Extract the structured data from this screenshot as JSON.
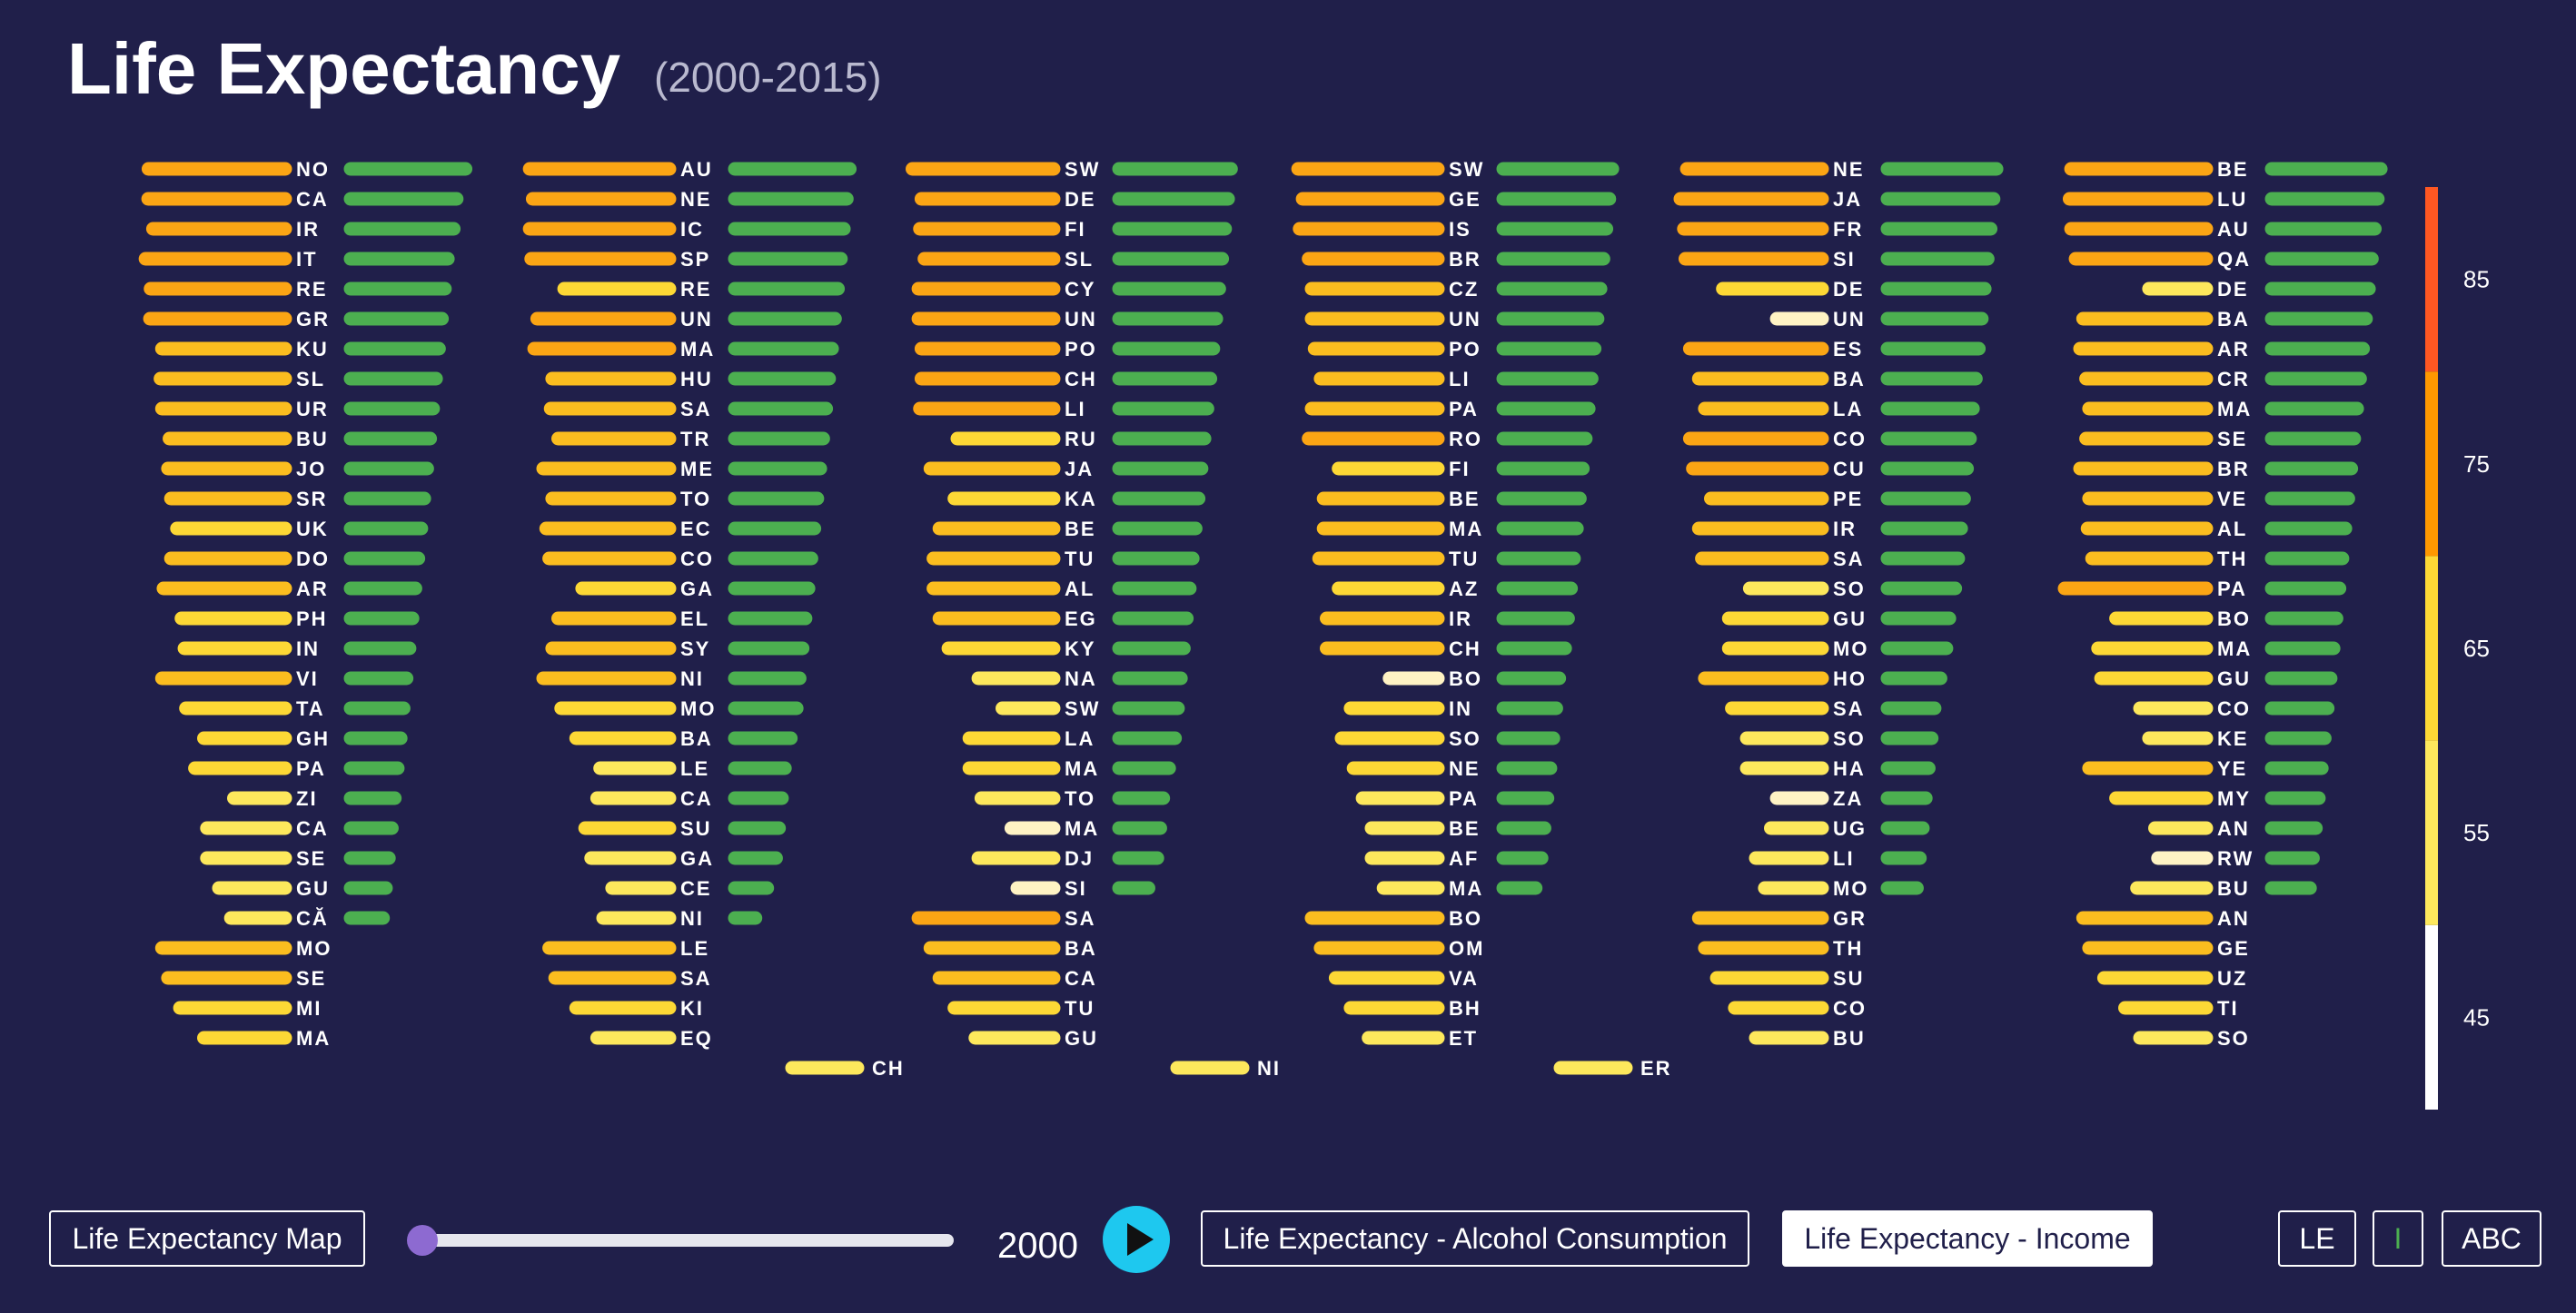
{
  "header": {
    "title": "Life Expectancy",
    "subtitle": "(2000-2015)"
  },
  "controls": {
    "map_button": "Life Expectancy Map",
    "year": "2000",
    "alcohol_button": "Life Expectancy - Alcohol Consumption",
    "income_button": "Life Expectancy - Income",
    "sort_le": "LE",
    "sort_income": "I",
    "sort_abc": "ABC",
    "slider_position": 0
  },
  "colors": {
    "background": "#201f4a",
    "income_bar": "#4caf50",
    "scale": [
      "#ffffff",
      "#fff176",
      "#fdd835",
      "#ff9800",
      "#ff5722"
    ]
  },
  "chart_data": {
    "type": "bar",
    "year": 2000,
    "legend": {
      "ticks": [
        85,
        75,
        65,
        55,
        45
      ],
      "range": [
        40,
        90
      ],
      "bins": [
        40,
        50,
        60,
        70,
        80,
        90
      ]
    },
    "columns": [
      {
        "countries": [
          {
            "code": "NO",
            "le": 78.5,
            "income": 0.94
          },
          {
            "code": "CA",
            "le": 78.6,
            "income": 0.91
          },
          {
            "code": "IR",
            "le": 77.0,
            "income": 0.9
          },
          {
            "code": "IT",
            "le": 79.5,
            "income": 0.88
          },
          {
            "code": "RE",
            "le": 77.8,
            "income": 0.87
          },
          {
            "code": "GR",
            "le": 78.0,
            "income": 0.86
          },
          {
            "code": "KU",
            "le": 74.0,
            "income": 0.85
          },
          {
            "code": "SL",
            "le": 74.5,
            "income": 0.84
          },
          {
            "code": "UR",
            "le": 74.0,
            "income": 0.83
          },
          {
            "code": "BU",
            "le": 71.5,
            "income": 0.82
          },
          {
            "code": "JO",
            "le": 72.0,
            "income": 0.81
          },
          {
            "code": "SR",
            "le": 71.0,
            "income": 0.8
          },
          {
            "code": "UK",
            "le": 69.0,
            "income": 0.79
          },
          {
            "code": "DO",
            "le": 71.0,
            "income": 0.78
          },
          {
            "code": "AR",
            "le": 73.5,
            "income": 0.77
          },
          {
            "code": "PH",
            "le": 67.5,
            "income": 0.76
          },
          {
            "code": "IN",
            "le": 66.5,
            "income": 0.75
          },
          {
            "code": "VI",
            "le": 74.0,
            "income": 0.74
          },
          {
            "code": "TA",
            "le": 66.0,
            "income": 0.73
          },
          {
            "code": "GH",
            "le": 60.0,
            "income": 0.72
          },
          {
            "code": "PA",
            "le": 63.0,
            "income": 0.71
          },
          {
            "code": "ZI",
            "le": 50.0,
            "income": 0.7
          },
          {
            "code": "CA",
            "le": 59.0,
            "income": 0.69
          },
          {
            "code": "SE",
            "le": 59.0,
            "income": 0.68
          },
          {
            "code": "GU",
            "le": 55.0,
            "income": 0.67
          },
          {
            "code": "CĂ",
            "le": 51.0,
            "income": 0.66
          },
          {
            "code": "MO",
            "le": 74.0,
            "income": null
          },
          {
            "code": "SE",
            "le": 72.0,
            "income": null
          },
          {
            "code": "MI",
            "le": 68.0,
            "income": null
          },
          {
            "code": "MA",
            "le": 60.0,
            "income": null
          }
        ]
      },
      {
        "countries": [
          {
            "code": "AU",
            "le": 79.5,
            "income": 0.94
          },
          {
            "code": "NE",
            "le": 78.5,
            "income": 0.93
          },
          {
            "code": "IC",
            "le": 79.5,
            "income": 0.92
          },
          {
            "code": "SP",
            "le": 79.0,
            "income": 0.91
          },
          {
            "code": "RE",
            "le": 68.0,
            "income": 0.9
          },
          {
            "code": "UN",
            "le": 77.0,
            "income": 0.89
          },
          {
            "code": "MA",
            "le": 78.0,
            "income": 0.88
          },
          {
            "code": "HU",
            "le": 72.0,
            "income": 0.87
          },
          {
            "code": "SA",
            "le": 72.5,
            "income": 0.86
          },
          {
            "code": "TR",
            "le": 70.0,
            "income": 0.85
          },
          {
            "code": "ME",
            "le": 75.0,
            "income": 0.84
          },
          {
            "code": "TO",
            "le": 72.0,
            "income": 0.83
          },
          {
            "code": "EC",
            "le": 74.0,
            "income": 0.82
          },
          {
            "code": "CO",
            "le": 73.0,
            "income": 0.81
          },
          {
            "code": "GA",
            "le": 62.0,
            "income": 0.8
          },
          {
            "code": "EL",
            "le": 70.0,
            "income": 0.79
          },
          {
            "code": "SY",
            "le": 72.0,
            "income": 0.78
          },
          {
            "code": "NI",
            "le": 75.0,
            "income": 0.77
          },
          {
            "code": "MO",
            "le": 69.0,
            "income": 0.76
          },
          {
            "code": "BA",
            "le": 64.0,
            "income": 0.74
          },
          {
            "code": "LE",
            "le": 56.0,
            "income": 0.72
          },
          {
            "code": "CA",
            "le": 57.0,
            "income": 0.71
          },
          {
            "code": "SU",
            "le": 61.0,
            "income": 0.7
          },
          {
            "code": "GA",
            "le": 59.0,
            "income": 0.69
          },
          {
            "code": "CE",
            "le": 52.0,
            "income": 0.66
          },
          {
            "code": "NI",
            "le": 55.0,
            "income": 0.62
          },
          {
            "code": "LE",
            "le": 73.0,
            "income": null
          },
          {
            "code": "SA",
            "le": 71.0,
            "income": null
          },
          {
            "code": "KI",
            "le": 64.0,
            "income": null
          },
          {
            "code": "EQ",
            "le": 57.0,
            "income": null
          }
        ]
      },
      {
        "countries": [
          {
            "code": "SW",
            "le": 80.0,
            "income": 0.93
          },
          {
            "code": "DE",
            "le": 77.0,
            "income": 0.92
          },
          {
            "code": "FI",
            "le": 77.5,
            "income": 0.91
          },
          {
            "code": "SL",
            "le": 76.0,
            "income": 0.9
          },
          {
            "code": "CY",
            "le": 78.0,
            "income": 0.89
          },
          {
            "code": "UN",
            "le": 78.0,
            "income": 0.88
          },
          {
            "code": "PO",
            "le": 77.0,
            "income": 0.87
          },
          {
            "code": "CH",
            "le": 77.0,
            "income": 0.86
          },
          {
            "code": "LI",
            "le": 77.5,
            "income": 0.85
          },
          {
            "code": "RU",
            "le": 65.0,
            "income": 0.84
          },
          {
            "code": "JA",
            "le": 74.0,
            "income": 0.83
          },
          {
            "code": "KA",
            "le": 66.0,
            "income": 0.82
          },
          {
            "code": "BE",
            "le": 71.0,
            "income": 0.81
          },
          {
            "code": "TU",
            "le": 73.0,
            "income": 0.8
          },
          {
            "code": "AL",
            "le": 73.0,
            "income": 0.79
          },
          {
            "code": "EG",
            "le": 71.0,
            "income": 0.78
          },
          {
            "code": "KY",
            "le": 68.0,
            "income": 0.77
          },
          {
            "code": "NA",
            "le": 58.0,
            "income": 0.76
          },
          {
            "code": "SW",
            "le": 50.0,
            "income": 0.75
          },
          {
            "code": "LA",
            "le": 61.0,
            "income": 0.74
          },
          {
            "code": "MA",
            "le": 61.0,
            "income": 0.72
          },
          {
            "code": "TO",
            "le": 57.0,
            "income": 0.7
          },
          {
            "code": "MA",
            "le": 47.0,
            "income": 0.69
          },
          {
            "code": "DJ",
            "le": 58.0,
            "income": 0.68
          },
          {
            "code": "SI",
            "le": 42.0,
            "income": 0.65
          },
          {
            "code": "SA",
            "le": 78.0,
            "income": null
          },
          {
            "code": "BA",
            "le": 74.0,
            "income": null
          },
          {
            "code": "CA",
            "le": 71.0,
            "income": null
          },
          {
            "code": "TU",
            "le": 66.0,
            "income": null
          },
          {
            "code": "GU",
            "le": 59.0,
            "income": null
          }
        ]
      },
      {
        "countries": [
          {
            "code": "SW",
            "le": 79.5,
            "income": 0.92
          },
          {
            "code": "GE",
            "le": 78.0,
            "income": 0.91
          },
          {
            "code": "IS",
            "le": 79.0,
            "income": 0.9
          },
          {
            "code": "BR",
            "le": 76.0,
            "income": 0.89
          },
          {
            "code": "CZ",
            "le": 75.0,
            "income": 0.88
          },
          {
            "code": "UN",
            "le": 75.0,
            "income": 0.87
          },
          {
            "code": "PO",
            "le": 74.0,
            "income": 0.86
          },
          {
            "code": "LI",
            "le": 72.0,
            "income": 0.85
          },
          {
            "code": "PA",
            "le": 75.0,
            "income": 0.84
          },
          {
            "code": "RO",
            "le": 76.0,
            "income": 0.83
          },
          {
            "code": "FI",
            "le": 66.0,
            "income": 0.82
          },
          {
            "code": "BE",
            "le": 71.0,
            "income": 0.81
          },
          {
            "code": "MA",
            "le": 71.0,
            "income": 0.8
          },
          {
            "code": "TU",
            "le": 72.5,
            "income": 0.79
          },
          {
            "code": "AZ",
            "le": 66.0,
            "income": 0.78
          },
          {
            "code": "IR",
            "le": 70.0,
            "income": 0.77
          },
          {
            "code": "CH",
            "le": 70.0,
            "income": 0.76
          },
          {
            "code": "BO",
            "le": 49.0,
            "income": 0.74
          },
          {
            "code": "IN",
            "le": 62.0,
            "income": 0.73
          },
          {
            "code": "SO",
            "le": 65.0,
            "income": 0.72
          },
          {
            "code": "NE",
            "le": 61.0,
            "income": 0.71
          },
          {
            "code": "PA",
            "le": 58.0,
            "income": 0.7
          },
          {
            "code": "BE",
            "le": 55.0,
            "income": 0.69
          },
          {
            "code": "AF",
            "le": 55.0,
            "income": 0.68
          },
          {
            "code": "MA",
            "le": 51.0,
            "income": 0.66
          },
          {
            "code": "BO",
            "le": 75.0,
            "income": null
          },
          {
            "code": "OM",
            "le": 72.0,
            "income": null
          },
          {
            "code": "VA",
            "le": 67.0,
            "income": null
          },
          {
            "code": "BH",
            "le": 62.0,
            "income": null
          },
          {
            "code": "ET",
            "le": 56.0,
            "income": null
          }
        ]
      },
      {
        "countries": [
          {
            "code": "NE",
            "le": 78.0,
            "income": 0.92
          },
          {
            "code": "JA",
            "le": 81.5,
            "income": 0.91
          },
          {
            "code": "FR",
            "le": 79.0,
            "income": 0.9
          },
          {
            "code": "SI",
            "le": 78.5,
            "income": 0.89
          },
          {
            "code": "DE",
            "le": 66.0,
            "income": 0.88
          },
          {
            "code": "UN",
            "le": 48.0,
            "income": 0.87
          },
          {
            "code": "ES",
            "le": 77.0,
            "income": 0.86
          },
          {
            "code": "BA",
            "le": 74.0,
            "income": 0.85
          },
          {
            "code": "LA",
            "le": 72.0,
            "income": 0.84
          },
          {
            "code": "CO",
            "le": 77.0,
            "income": 0.83
          },
          {
            "code": "CU",
            "le": 76.0,
            "income": 0.82
          },
          {
            "code": "PE",
            "le": 70.0,
            "income": 0.81
          },
          {
            "code": "IR",
            "le": 74.0,
            "income": 0.8
          },
          {
            "code": "SA",
            "le": 73.0,
            "income": 0.79
          },
          {
            "code": "SO",
            "le": 57.0,
            "income": 0.78
          },
          {
            "code": "GU",
            "le": 64.0,
            "income": 0.76
          },
          {
            "code": "MO",
            "le": 64.0,
            "income": 0.75
          },
          {
            "code": "HO",
            "le": 72.0,
            "income": 0.73
          },
          {
            "code": "SA",
            "le": 63.0,
            "income": 0.71
          },
          {
            "code": "SO",
            "le": 58.0,
            "income": 0.7
          },
          {
            "code": "HA",
            "le": 58.0,
            "income": 0.69
          },
          {
            "code": "ZA",
            "le": 48.0,
            "income": 0.68
          },
          {
            "code": "UG",
            "le": 50.0,
            "income": 0.67
          },
          {
            "code": "LI",
            "le": 55.0,
            "income": 0.66
          },
          {
            "code": "MO",
            "le": 52.0,
            "income": 0.65
          },
          {
            "code": "GR",
            "le": 74.0,
            "income": null
          },
          {
            "code": "TH",
            "le": 72.0,
            "income": null
          },
          {
            "code": "SU",
            "le": 68.0,
            "income": null
          },
          {
            "code": "CO",
            "le": 62.0,
            "income": null
          },
          {
            "code": "BU",
            "le": 55.0,
            "income": null
          }
        ]
      },
      {
        "countries": [
          {
            "code": "BE",
            "le": 78.0,
            "income": 0.92
          },
          {
            "code": "LU",
            "le": 78.5,
            "income": 0.91
          },
          {
            "code": "AU",
            "le": 78.0,
            "income": 0.9
          },
          {
            "code": "QA",
            "le": 76.5,
            "income": 0.89
          },
          {
            "code": "DE",
            "le": 52.0,
            "income": 0.88
          },
          {
            "code": "BA",
            "le": 74.0,
            "income": 0.87
          },
          {
            "code": "AR",
            "le": 75.0,
            "income": 0.86
          },
          {
            "code": "CR",
            "le": 73.0,
            "income": 0.85
          },
          {
            "code": "MA",
            "le": 72.0,
            "income": 0.84
          },
          {
            "code": "SE",
            "le": 73.0,
            "income": 0.83
          },
          {
            "code": "BR",
            "le": 75.0,
            "income": 0.82
          },
          {
            "code": "VE",
            "le": 72.0,
            "income": 0.81
          },
          {
            "code": "AL",
            "le": 72.5,
            "income": 0.8
          },
          {
            "code": "TH",
            "le": 71.0,
            "income": 0.79
          },
          {
            "code": "PA",
            "le": 80.5,
            "income": 0.78
          },
          {
            "code": "BO",
            "le": 63.0,
            "income": 0.77
          },
          {
            "code": "MA",
            "le": 69.0,
            "income": 0.76
          },
          {
            "code": "GU",
            "le": 68.0,
            "income": 0.75
          },
          {
            "code": "CO",
            "le": 55.0,
            "income": 0.74
          },
          {
            "code": "KE",
            "le": 52.0,
            "income": 0.73
          },
          {
            "code": "YE",
            "le": 72.0,
            "income": 0.72
          },
          {
            "code": "MY",
            "le": 63.0,
            "income": 0.71
          },
          {
            "code": "AN",
            "le": 50.0,
            "income": 0.7
          },
          {
            "code": "RW",
            "le": 49.0,
            "income": 0.69
          },
          {
            "code": "BU",
            "le": 56.0,
            "income": 0.68
          },
          {
            "code": "AN",
            "le": 74.0,
            "income": null
          },
          {
            "code": "GE",
            "le": 72.0,
            "income": null
          },
          {
            "code": "UZ",
            "le": 67.0,
            "income": null
          },
          {
            "code": "TI",
            "le": 60.0,
            "income": null
          },
          {
            "code": "SO",
            "le": 55.0,
            "income": null
          }
        ]
      }
    ],
    "extra_row": [
      {
        "code": "CH",
        "le": 57.0,
        "income": null,
        "column": 1
      },
      {
        "code": "NI",
        "le": 57.0,
        "income": null,
        "column": 2
      },
      {
        "code": "ER",
        "le": 57.0,
        "income": null,
        "column": 3
      }
    ]
  }
}
